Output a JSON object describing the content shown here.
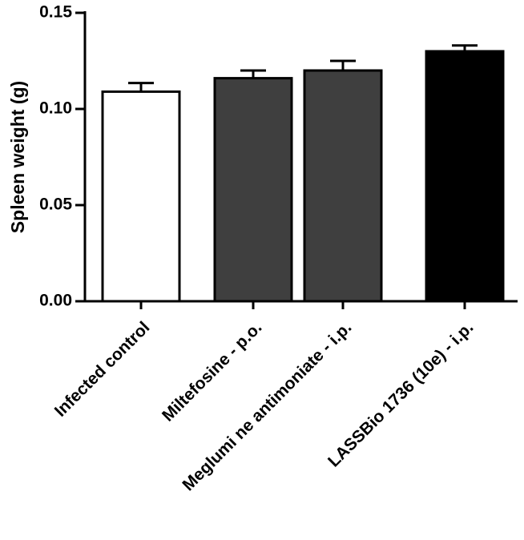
{
  "chart_data": {
    "type": "bar",
    "title": "",
    "ylabel": "Spleen weight (g)",
    "xlabel": "",
    "ylim": [
      0,
      0.15
    ],
    "yticks": [
      0.0,
      0.05,
      0.1,
      0.15
    ],
    "ytick_labels": [
      "0.00",
      "0.05",
      "0.10",
      "0.15"
    ],
    "categories": [
      "Infected control",
      "Miltefosine - p.o.",
      "Meglumi ne antimoniate - i.p.",
      "LASSBio 1736 (10e) - i.p."
    ],
    "values": [
      0.109,
      0.116,
      0.12,
      0.13
    ],
    "errors": [
      0.0045,
      0.004,
      0.005,
      0.003
    ],
    "colors": [
      "#ffffff",
      "#3f3f3f",
      "#3f3f3f",
      "#000000"
    ],
    "grid": false,
    "legend": "none"
  }
}
